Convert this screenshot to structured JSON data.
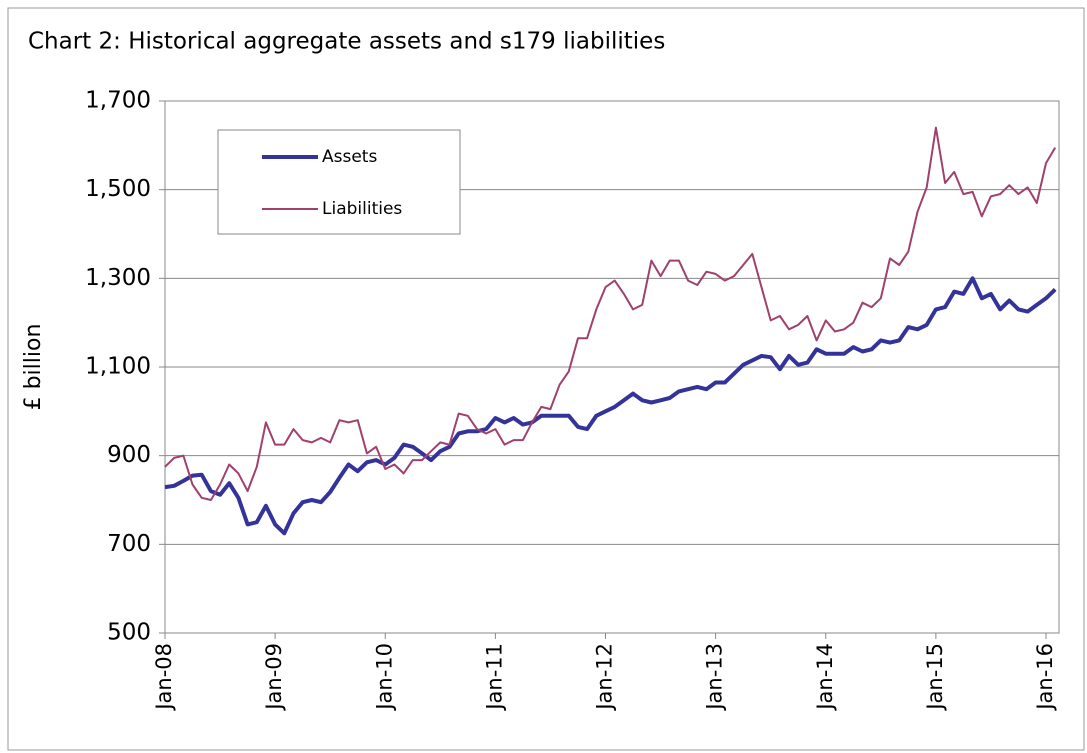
{
  "chart_data": {
    "type": "line",
    "title": "Chart 2: Historical aggregate assets and s179 liabilities",
    "y_label": "£ billion",
    "categories": [
      "Jan-08",
      null,
      null,
      null,
      null,
      null,
      null,
      null,
      null,
      null,
      null,
      null,
      "Jan-09",
      null,
      null,
      null,
      null,
      null,
      null,
      null,
      null,
      null,
      null,
      null,
      "Jan-10",
      null,
      null,
      null,
      null,
      null,
      null,
      null,
      null,
      null,
      null,
      null,
      "Jan-11",
      null,
      null,
      null,
      null,
      null,
      null,
      null,
      null,
      null,
      null,
      null,
      "Jan-12",
      null,
      null,
      null,
      null,
      null,
      null,
      null,
      null,
      null,
      null,
      null,
      "Jan-13",
      null,
      null,
      null,
      null,
      null,
      null,
      null,
      null,
      null,
      null,
      null,
      "Jan-14",
      null,
      null,
      null,
      null,
      null,
      null,
      null,
      null,
      null,
      null,
      null,
      "Jan-15",
      null,
      null,
      null,
      null,
      null,
      null,
      null,
      null,
      null,
      null,
      null,
      "Jan-16",
      null
    ],
    "series": [
      {
        "name": "Assets",
        "color": "#333399",
        "width": 4,
        "values": [
          829,
          832,
          843,
          855,
          857,
          820,
          812,
          838,
          805,
          745,
          750,
          787,
          745,
          725,
          770,
          795,
          800,
          795,
          818,
          850,
          880,
          865,
          885,
          890,
          880,
          895,
          925,
          920,
          905,
          890,
          910,
          920,
          950,
          955,
          955,
          960,
          985,
          975,
          985,
          970,
          975,
          990,
          990,
          990,
          990,
          965,
          960,
          990,
          1000,
          1010,
          1025,
          1040,
          1025,
          1020,
          1025,
          1030,
          1045,
          1050,
          1055,
          1050,
          1065,
          1065,
          1085,
          1105,
          1115,
          1125,
          1122,
          1095,
          1125,
          1105,
          1110,
          1140,
          1130,
          1130,
          1130,
          1145,
          1135,
          1140,
          1160,
          1155,
          1160,
          1190,
          1185,
          1195,
          1230,
          1235,
          1270,
          1265,
          1300,
          1255,
          1265,
          1230,
          1250,
          1230,
          1225,
          1240,
          1255,
          1275
        ]
      },
      {
        "name": "Liabilities",
        "color": "#a0406e",
        "width": 2,
        "values": [
          875,
          895,
          900,
          835,
          805,
          800,
          835,
          880,
          860,
          820,
          875,
          975,
          925,
          925,
          960,
          935,
          930,
          940,
          930,
          980,
          975,
          980,
          905,
          920,
          870,
          880,
          860,
          890,
          890,
          910,
          930,
          925,
          995,
          990,
          960,
          950,
          960,
          925,
          935,
          935,
          975,
          1010,
          1005,
          1060,
          1090,
          1165,
          1165,
          1230,
          1280,
          1295,
          1265,
          1230,
          1240,
          1340,
          1305,
          1340,
          1340,
          1295,
          1285,
          1315,
          1310,
          1295,
          1305,
          1330,
          1355,
          1280,
          1205,
          1215,
          1185,
          1195,
          1215,
          1160,
          1205,
          1180,
          1185,
          1200,
          1245,
          1235,
          1255,
          1345,
          1330,
          1360,
          1450,
          1505,
          1640,
          1515,
          1540,
          1490,
          1495,
          1440,
          1485,
          1490,
          1510,
          1490,
          1505,
          1470,
          1560,
          1595
        ]
      }
    ],
    "ylim": [
      500,
      1700
    ],
    "yticks": [
      500,
      700,
      900,
      1100,
      1300,
      1500,
      {
        "value": 1700,
        "label": "1,700"
      }
    ],
    "grid": true,
    "legend": "upper left"
  }
}
